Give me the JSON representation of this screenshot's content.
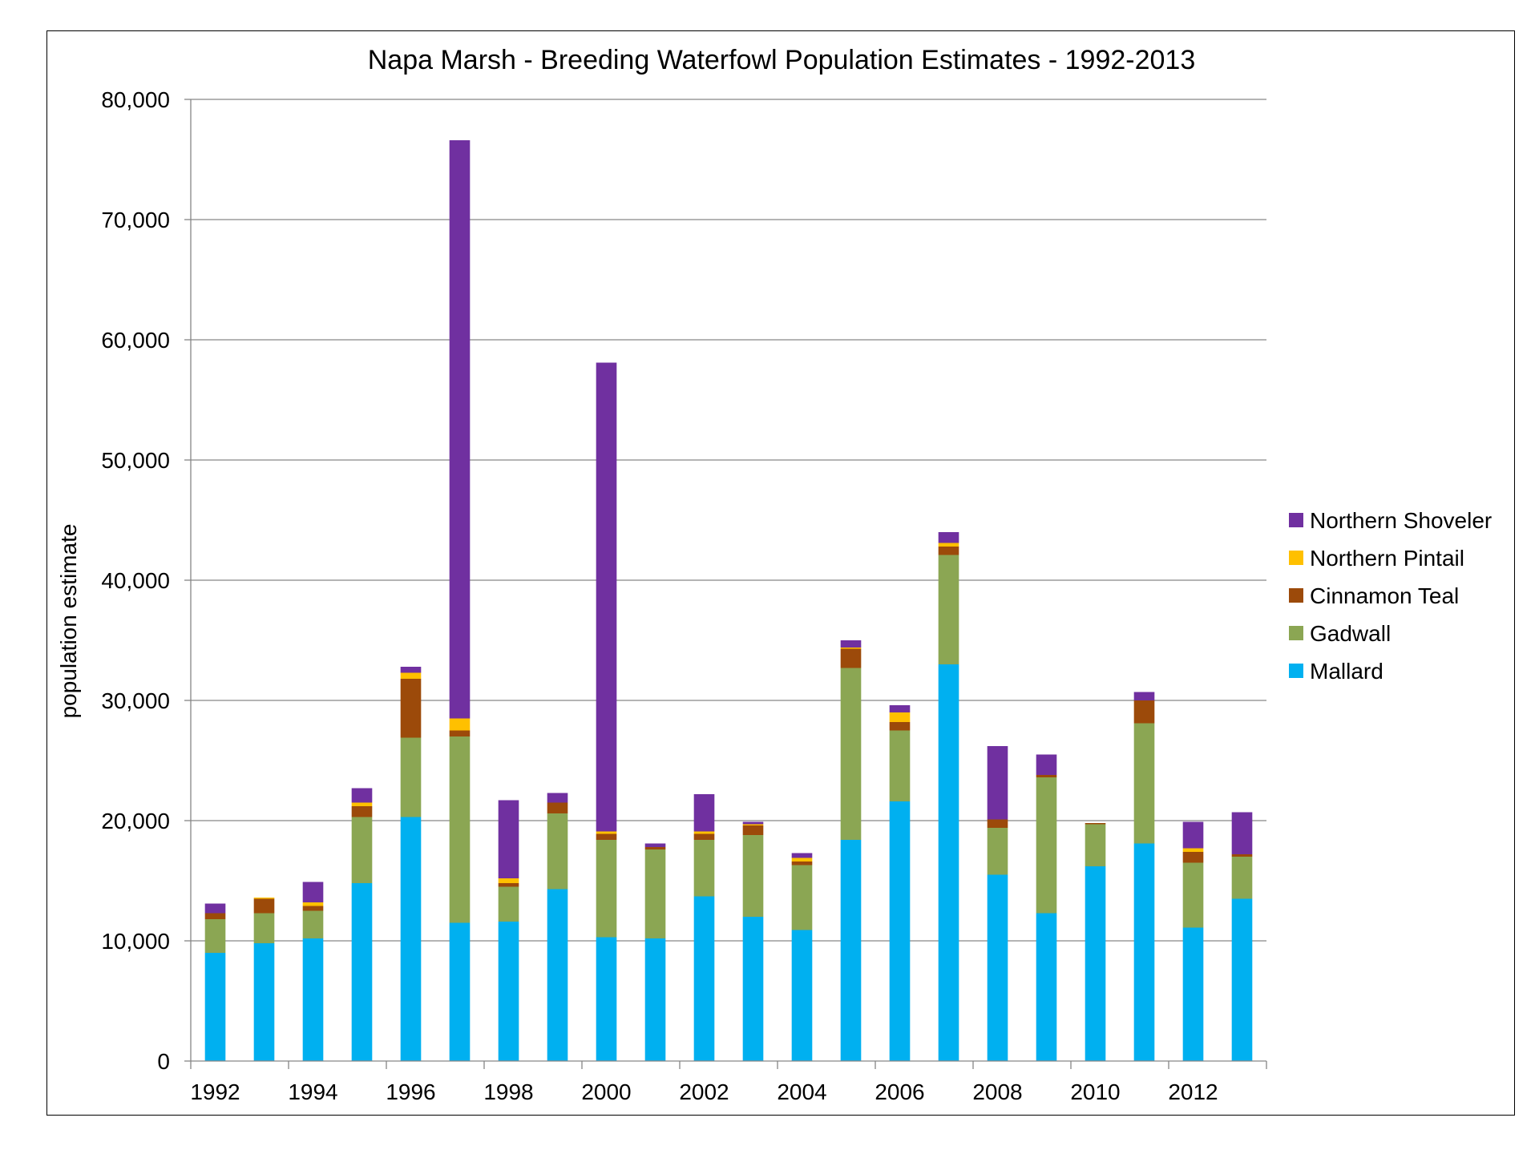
{
  "chart_data": {
    "type": "bar",
    "stacked": true,
    "title": "Napa Marsh - Breeding Waterfowl Population Estimates - 1992-2013",
    "xlabel": "",
    "ylabel": "population estimate",
    "ylim": [
      0,
      80000
    ],
    "yticks": [
      0,
      10000,
      20000,
      30000,
      40000,
      50000,
      60000,
      70000,
      80000
    ],
    "ytick_labels": [
      "0",
      "10,000",
      "20,000",
      "30,000",
      "40,000",
      "50,000",
      "60,000",
      "70,000",
      "80,000"
    ],
    "grid": true,
    "legend_position": "right",
    "categories": [
      "1992",
      "1993",
      "1994",
      "1995",
      "1996",
      "1997",
      "1998",
      "1999",
      "2000",
      "2001",
      "2002",
      "2003",
      "2004",
      "2005",
      "2006",
      "2007",
      "2008",
      "2009",
      "2010",
      "2011",
      "2012",
      "2013"
    ],
    "xtick_labels": [
      "1992",
      "",
      "1994",
      "",
      "1996",
      "",
      "1998",
      "",
      "2000",
      "",
      "2002",
      "",
      "2004",
      "",
      "2006",
      "",
      "2008",
      "",
      "2010",
      "",
      "2012",
      ""
    ],
    "series": [
      {
        "name": "Mallard",
        "color": "#00B0F0",
        "values": [
          9000,
          9800,
          10200,
          14800,
          20300,
          11500,
          11600,
          14300,
          10300,
          10200,
          13700,
          12000,
          10900,
          18400,
          21600,
          33000,
          15500,
          12300,
          16200,
          18100,
          11100,
          13500
        ]
      },
      {
        "name": "Gadwall",
        "color": "#8BA653",
        "values": [
          2800,
          2500,
          2300,
          5500,
          6600,
          15500,
          2900,
          6300,
          8100,
          7400,
          4700,
          6800,
          5400,
          14300,
          5900,
          9100,
          3900,
          11300,
          3500,
          10000,
          5400,
          3500
        ]
      },
      {
        "name": "Cinnamon Teal",
        "color": "#9C4A0A",
        "values": [
          500,
          1200,
          400,
          900,
          4900,
          500,
          300,
          900,
          500,
          200,
          500,
          800,
          300,
          1600,
          700,
          700,
          700,
          200,
          100,
          1900,
          900,
          200
        ]
      },
      {
        "name": "Northern Pintail",
        "color": "#FFC000",
        "values": [
          0,
          100,
          300,
          300,
          500,
          1000,
          400,
          0,
          200,
          0,
          200,
          100,
          300,
          100,
          800,
          300,
          0,
          0,
          0,
          0,
          300,
          0
        ]
      },
      {
        "name": "Northern Shoveler",
        "color": "#7030A0",
        "values": [
          800,
          0,
          1700,
          1200,
          500,
          48100,
          6500,
          800,
          39000,
          300,
          3100,
          200,
          400,
          600,
          600,
          900,
          6100,
          1700,
          0,
          700,
          2200,
          3500
        ]
      }
    ]
  }
}
